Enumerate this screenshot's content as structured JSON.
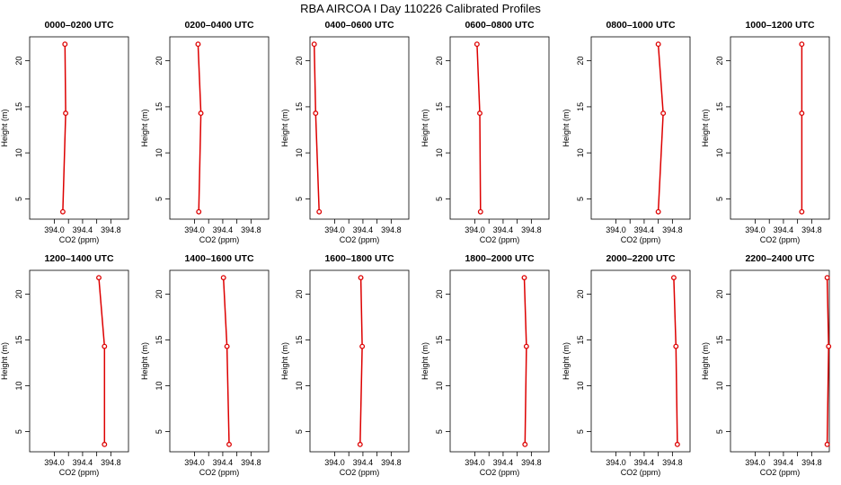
{
  "title": "RBA AIRCOA I  Day 110226  Calibrated Profiles",
  "chart_data": {
    "type": "line",
    "xlabel": "CO2 (ppm)",
    "ylabel": "Height (m)",
    "xticks": [
      "394.0",
      "394.4",
      "394.8"
    ],
    "yticks": [
      "5",
      "10",
      "15",
      "20"
    ],
    "line_color": "#dd0000",
    "marker_color": "#dd0000",
    "panels": [
      {
        "title": "0000–0200 UTC",
        "xlim": [
          393.65,
          395.05
        ],
        "ylim": [
          2.8,
          22.6
        ],
        "points": [
          {
            "x": 394.15,
            "y": 21.8
          },
          {
            "x": 394.16,
            "y": 14.3
          },
          {
            "x": 394.12,
            "y": 3.6
          }
        ]
      },
      {
        "title": "0200–0400 UTC",
        "xlim": [
          393.65,
          395.05
        ],
        "ylim": [
          2.8,
          22.6
        ],
        "points": [
          {
            "x": 394.05,
            "y": 21.8
          },
          {
            "x": 394.09,
            "y": 14.3
          },
          {
            "x": 394.06,
            "y": 3.6
          }
        ]
      },
      {
        "title": "0400–0600 UTC",
        "xlim": [
          393.65,
          395.05
        ],
        "ylim": [
          2.8,
          22.6
        ],
        "points": [
          {
            "x": 393.71,
            "y": 21.8
          },
          {
            "x": 393.73,
            "y": 14.3
          },
          {
            "x": 393.78,
            "y": 3.6
          }
        ]
      },
      {
        "title": "0600–0800 UTC",
        "xlim": [
          393.65,
          395.05
        ],
        "ylim": [
          2.8,
          22.6
        ],
        "points": [
          {
            "x": 394.03,
            "y": 21.8
          },
          {
            "x": 394.07,
            "y": 14.3
          },
          {
            "x": 394.08,
            "y": 3.6
          }
        ]
      },
      {
        "title": "0800–1000 UTC",
        "xlim": [
          393.65,
          395.05
        ],
        "ylim": [
          2.8,
          22.6
        ],
        "points": [
          {
            "x": 394.6,
            "y": 21.8
          },
          {
            "x": 394.67,
            "y": 14.3
          },
          {
            "x": 394.6,
            "y": 3.6
          }
        ]
      },
      {
        "title": "1000–1200 UTC",
        "xlim": [
          393.65,
          395.05
        ],
        "ylim": [
          2.8,
          22.6
        ],
        "points": [
          {
            "x": 394.66,
            "y": 21.8
          },
          {
            "x": 394.66,
            "y": 14.3
          },
          {
            "x": 394.66,
            "y": 3.6
          }
        ]
      },
      {
        "title": "1200–1400 UTC",
        "xlim": [
          393.65,
          395.05
        ],
        "ylim": [
          2.8,
          22.6
        ],
        "points": [
          {
            "x": 394.63,
            "y": 21.8
          },
          {
            "x": 394.71,
            "y": 14.3
          },
          {
            "x": 394.71,
            "y": 3.6
          }
        ]
      },
      {
        "title": "1400–1600 UTC",
        "xlim": [
          393.65,
          395.05
        ],
        "ylim": [
          2.8,
          22.6
        ],
        "points": [
          {
            "x": 394.41,
            "y": 21.8
          },
          {
            "x": 394.46,
            "y": 14.3
          },
          {
            "x": 394.49,
            "y": 3.6
          }
        ]
      },
      {
        "title": "1600–1800 UTC",
        "xlim": [
          393.65,
          395.05
        ],
        "ylim": [
          2.8,
          22.6
        ],
        "points": [
          {
            "x": 394.37,
            "y": 21.8
          },
          {
            "x": 394.39,
            "y": 14.3
          },
          {
            "x": 394.36,
            "y": 3.6
          }
        ]
      },
      {
        "title": "1800–2000 UTC",
        "xlim": [
          393.65,
          395.05
        ],
        "ylim": [
          2.8,
          22.6
        ],
        "points": [
          {
            "x": 394.7,
            "y": 21.8
          },
          {
            "x": 394.73,
            "y": 14.3
          },
          {
            "x": 394.71,
            "y": 3.6
          }
        ]
      },
      {
        "title": "2000–2200 UTC",
        "xlim": [
          393.65,
          395.05
        ],
        "ylim": [
          2.8,
          22.6
        ],
        "points": [
          {
            "x": 394.82,
            "y": 21.8
          },
          {
            "x": 394.85,
            "y": 14.3
          },
          {
            "x": 394.87,
            "y": 3.6
          }
        ]
      },
      {
        "title": "2200–2400 UTC",
        "xlim": [
          393.65,
          395.05
        ],
        "ylim": [
          2.8,
          22.6
        ],
        "points": [
          {
            "x": 395.02,
            "y": 21.8
          },
          {
            "x": 395.04,
            "y": 14.3
          },
          {
            "x": 395.02,
            "y": 3.6
          }
        ]
      }
    ]
  }
}
